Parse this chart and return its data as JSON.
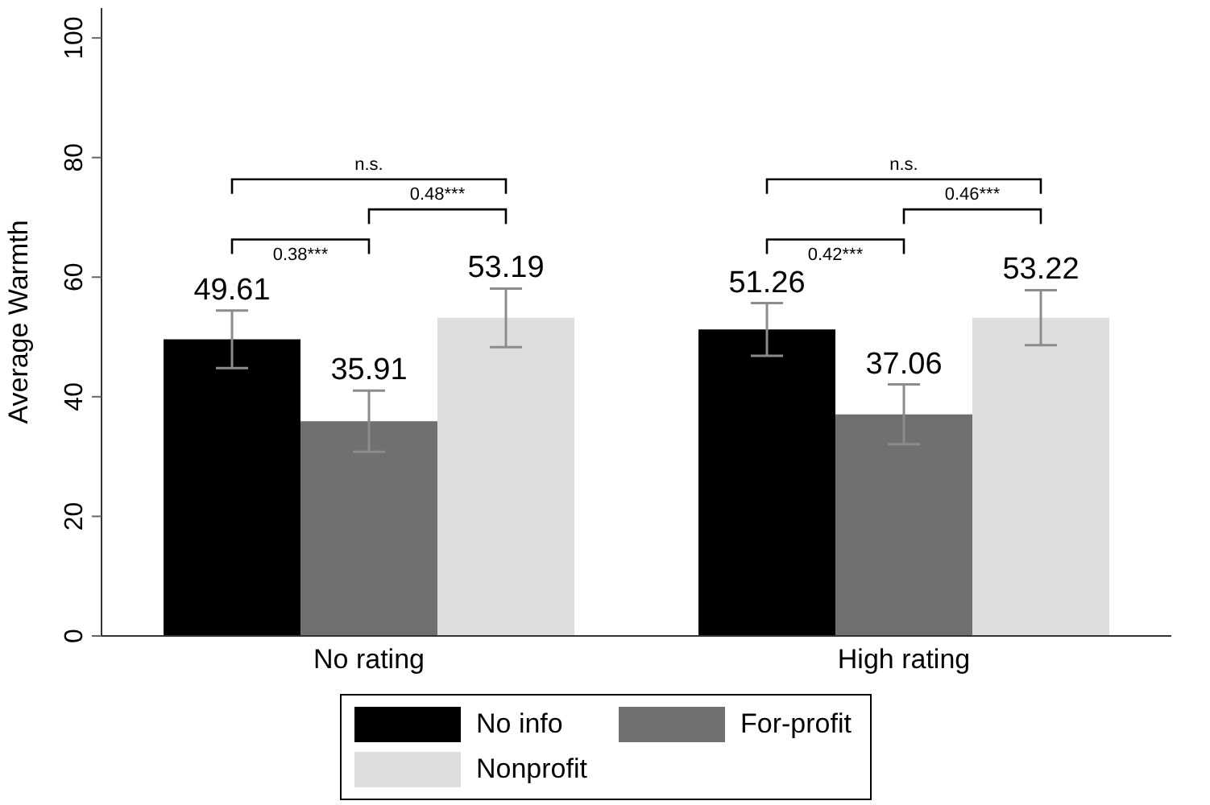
{
  "chart_data": {
    "type": "bar",
    "ylabel": "Average Warmth",
    "categories": [
      "No rating",
      "High rating"
    ],
    "series": [
      {
        "name": "No info",
        "color": "#000000",
        "values": [
          49.61,
          51.26
        ],
        "errors": [
          4.8,
          4.4
        ]
      },
      {
        "name": "For-profit",
        "color": "#707070",
        "values": [
          35.91,
          37.06
        ],
        "errors": [
          5.1,
          5.0
        ]
      },
      {
        "name": "Nonprofit",
        "color": "#dedede",
        "values": [
          53.19,
          53.22
        ],
        "errors": [
          4.9,
          4.6
        ]
      }
    ],
    "ylim": [
      0,
      105
    ],
    "yticks": [
      0,
      20,
      40,
      60,
      80,
      100
    ],
    "legend": "bottom",
    "data_labels": true,
    "annotations": [
      "0.38***",
      "0.48***",
      "n.s.",
      "0.42***",
      "0.46***",
      "n.s."
    ]
  }
}
